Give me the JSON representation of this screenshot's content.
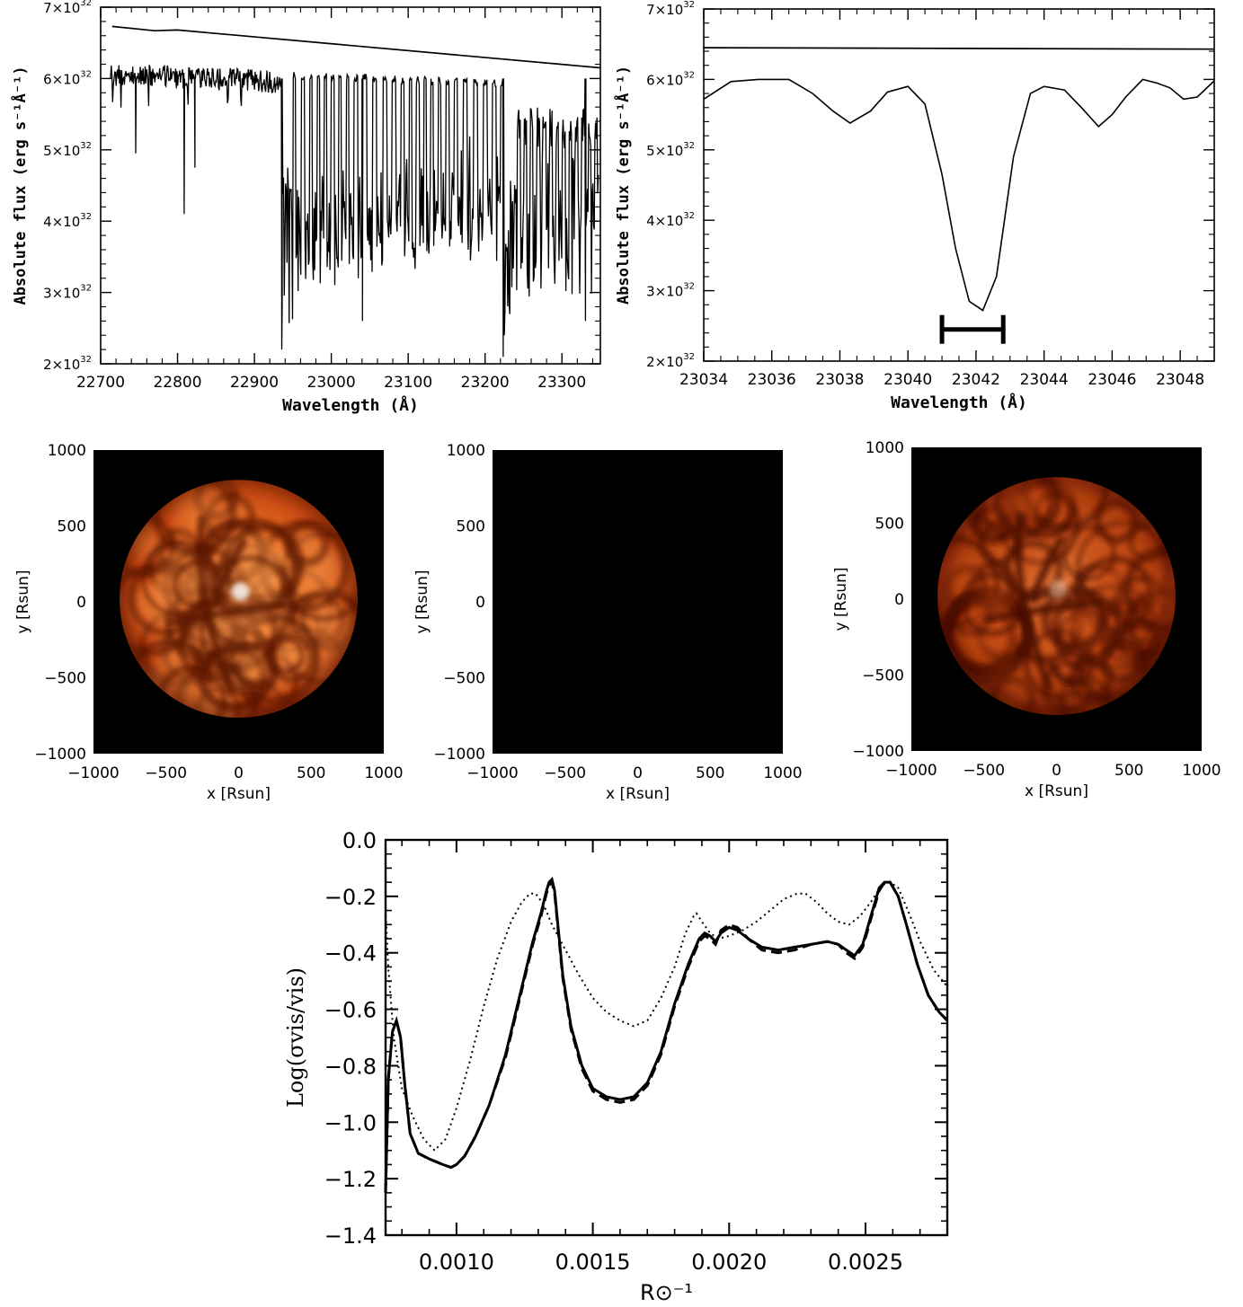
{
  "chart_data": [
    {
      "id": "spectrum-full",
      "type": "line",
      "xlabel": "Wavelength (Å)",
      "ylabel": "Absolute flux (erg s⁻¹Å⁻¹)",
      "xlim": [
        22700,
        23350
      ],
      "ylim": [
        2e+32,
        7e+32
      ],
      "x_ticks": [
        "22700",
        "22800",
        "22900",
        "23000",
        "23100",
        "23200",
        "23300"
      ],
      "y_ticks": [
        "2×10",
        "3×10",
        "4×10",
        "5×10",
        "6×10",
        "7×10"
      ],
      "y_tick_exponent": "32",
      "series": [
        {
          "style": "continuum",
          "x": [
            22715,
            22770,
            22800,
            23350
          ],
          "values": [
            6.73e+32,
            6.67e+32,
            6.68e+32,
            6.15e+32
          ]
        },
        {
          "style": "synthetic-spectrum",
          "x_range": [
            22700,
            23350
          ],
          "upper_envelope": [
            6.25e+32,
            6.2e+32,
            5.98e+32,
            5.95e+32
          ],
          "band_head_1": 22935,
          "band_head_2": 23225,
          "deep_lines": [
            {
              "x": 22745,
              "value": 4.95e+32
            },
            {
              "x": 22808,
              "value": 4.1e+32
            },
            {
              "x": 22822,
              "value": 4.75e+32
            },
            {
              "x": 22935,
              "value": 2.2e+32
            },
            {
              "x": 23040,
              "value": 2.6e+32
            },
            {
              "x": 23223,
              "value": 2.1e+32
            },
            {
              "x": 23330,
              "value": 2.6e+32
            }
          ]
        }
      ]
    },
    {
      "id": "spectrum-zoom",
      "type": "line",
      "xlabel": "Wavelength (Å)",
      "ylabel": "Absolute flux (erg s⁻¹Å⁻¹)",
      "xlim": [
        23034,
        23049
      ],
      "ylim": [
        2e+32,
        7e+32
      ],
      "x_ticks": [
        "23034",
        "23036",
        "23038",
        "23040",
        "23042",
        "23044",
        "23046",
        "23048"
      ],
      "y_ticks": [
        "2×10",
        "3×10",
        "4×10",
        "5×10",
        "6×10",
        "7×10"
      ],
      "y_tick_exponent": "32",
      "series": [
        {
          "style": "continuum",
          "x": [
            23034,
            23049
          ],
          "values": [
            6.45e+32,
            6.43e+32
          ]
        },
        {
          "style": "synthetic-spectrum",
          "x": [
            23034,
            23034.8,
            23035.6,
            23036.5,
            23037.2,
            23037.8,
            23038.3,
            23038.9,
            23039.4,
            23040.0,
            23040.5,
            23041.0,
            23041.4,
            23041.8,
            23042.2,
            23042.6,
            23043.1,
            23043.6,
            23044.0,
            23044.6,
            23045.1,
            23045.6,
            23046.0,
            23046.4,
            23046.9,
            23047.3,
            23047.7,
            23048.1,
            23048.5,
            23049.0
          ],
          "values": [
            5.72e+32,
            5.97e+32,
            6e+32,
            6e+32,
            5.8e+32,
            5.55e+32,
            5.38e+32,
            5.55e+32,
            5.82e+32,
            5.9e+32,
            5.65e+32,
            4.65e+32,
            3.6e+32,
            2.85e+32,
            2.72e+32,
            3.2e+32,
            4.9e+32,
            5.8e+32,
            5.9e+32,
            5.85e+32,
            5.6e+32,
            5.33e+32,
            5.5e+32,
            5.75e+32,
            6e+32,
            5.95e+32,
            5.88e+32,
            5.72e+32,
            5.75e+32,
            5.98e+32
          ]
        }
      ],
      "bandpass": {
        "x": [
          23041.0,
          23042.8
        ],
        "value": 2.45e+32
      }
    },
    {
      "id": "intensity-map-1",
      "type": "heatmap",
      "xlabel": "x [Rsun]",
      "ylabel": "y [Rsun]",
      "xlim": [
        -1000,
        1000
      ],
      "ylim": [
        -1000,
        1000
      ],
      "x_ticks": [
        "−1000",
        "−500",
        "0",
        "500",
        "1000"
      ],
      "y_ticks": [
        "−1000",
        "−500",
        "0",
        "500",
        "1000"
      ],
      "colormap": [
        "#000000",
        "#5a1300",
        "#b83a0a",
        "#e0601a",
        "#f79a4e",
        "#ffffff"
      ]
    },
    {
      "id": "intensity-map-2",
      "type": "heatmap",
      "xlabel": "x [Rsun]",
      "ylabel": "y [Rsun]",
      "xlim": [
        -1000,
        1000
      ],
      "ylim": [
        -1000,
        1000
      ],
      "x_ticks": [
        "−1000",
        "−500",
        "0",
        "500",
        "1000"
      ],
      "y_ticks": [
        "−1000",
        "−500",
        "0",
        "500",
        "1000"
      ],
      "colormap": [
        "#000000",
        "#5a1300",
        "#b83a0a",
        "#e0601a",
        "#f79a4e",
        "#ffffff"
      ]
    },
    {
      "id": "intensity-map-3",
      "type": "heatmap",
      "xlabel": "x [Rsun]",
      "ylabel": "y [Rsun]",
      "xlim": [
        -1000,
        1000
      ],
      "ylim": [
        -1000,
        1000
      ],
      "x_ticks": [
        "−1000",
        "−500",
        "0",
        "500",
        "1000"
      ],
      "y_ticks": [
        "−1000",
        "−500",
        "0",
        "500",
        "1000"
      ],
      "colormap": [
        "#000000",
        "#4a1000",
        "#9e3008",
        "#c84d14",
        "#ea8440",
        "#ffe0c0"
      ]
    },
    {
      "id": "visibility-error",
      "type": "line",
      "xlabel": "R⊙⁻¹",
      "ylabel": "Log(σvis/vis)",
      "xlim": [
        0.00074,
        0.0028
      ],
      "ylim": [
        -1.4,
        0.0
      ],
      "x_ticks": [
        "0.0010",
        "0.0015",
        "0.0020",
        "0.0025"
      ],
      "y_ticks": [
        "0.0",
        "−0.2",
        "−0.4",
        "−0.6",
        "−0.8",
        "−1.0",
        "−1.2",
        "−1.4"
      ],
      "series": [
        {
          "style": "solid",
          "x": [
            0.00074,
            0.000745,
            0.00075,
            0.000765,
            0.00078,
            0.000795,
            0.00081,
            0.00083,
            0.00086,
            0.0009,
            0.00095,
            0.00098,
            0.001,
            0.00103,
            0.00107,
            0.00112,
            0.00118,
            0.00124,
            0.00128,
            0.00131,
            0.00133,
            0.00134,
            0.00135,
            0.00136,
            0.00137,
            0.00139,
            0.00142,
            0.00146,
            0.0015,
            0.00155,
            0.0016,
            0.00165,
            0.0017,
            0.00175,
            0.0018,
            0.00185,
            0.00189,
            0.00191,
            0.00193,
            0.00195,
            0.00197,
            0.002,
            0.00203,
            0.00207,
            0.00212,
            0.00218,
            0.00224,
            0.0023,
            0.00236,
            0.0024,
            0.00243,
            0.00246,
            0.00249,
            0.00252,
            0.00255,
            0.00257,
            0.00259,
            0.00262,
            0.00265,
            0.00269,
            0.00273,
            0.00277,
            0.0028
          ],
          "values": [
            -1.25,
            -1.05,
            -0.85,
            -0.68,
            -0.64,
            -0.7,
            -0.86,
            -1.04,
            -1.11,
            -1.13,
            -1.15,
            -1.16,
            -1.15,
            -1.12,
            -1.05,
            -0.94,
            -0.76,
            -0.52,
            -0.36,
            -0.26,
            -0.18,
            -0.15,
            -0.14,
            -0.18,
            -0.28,
            -0.48,
            -0.66,
            -0.8,
            -0.88,
            -0.91,
            -0.92,
            -0.91,
            -0.86,
            -0.75,
            -0.58,
            -0.44,
            -0.35,
            -0.33,
            -0.34,
            -0.36,
            -0.33,
            -0.31,
            -0.32,
            -0.35,
            -0.38,
            -0.39,
            -0.38,
            -0.37,
            -0.36,
            -0.37,
            -0.39,
            -0.41,
            -0.37,
            -0.27,
            -0.17,
            -0.15,
            -0.15,
            -0.2,
            -0.3,
            -0.44,
            -0.55,
            -0.61,
            -0.64
          ]
        },
        {
          "style": "dashed",
          "x": [
            0.00074,
            0.000745,
            0.00075,
            0.000765,
            0.00078,
            0.000795,
            0.00081,
            0.00083,
            0.00086,
            0.0009,
            0.00095,
            0.00098,
            0.001,
            0.00103,
            0.00107,
            0.00112,
            0.00118,
            0.00124,
            0.00128,
            0.00131,
            0.00133,
            0.00134,
            0.00135,
            0.00136,
            0.00137,
            0.00139,
            0.00142,
            0.00146,
            0.0015,
            0.00155,
            0.0016,
            0.00165,
            0.0017,
            0.00175,
            0.0018,
            0.00185,
            0.00189,
            0.00191,
            0.00193,
            0.00195,
            0.00197,
            0.002,
            0.00203,
            0.00207,
            0.00212,
            0.00218,
            0.00224,
            0.0023,
            0.00236,
            0.0024,
            0.00243,
            0.00246,
            0.00249,
            0.00252,
            0.00255,
            0.00257,
            0.00259,
            0.00262,
            0.00265,
            0.00269,
            0.00273,
            0.00277,
            0.0028
          ],
          "values": [
            -1.25,
            -1.05,
            -0.85,
            -0.68,
            -0.64,
            -0.7,
            -0.86,
            -1.04,
            -1.11,
            -1.13,
            -1.15,
            -1.16,
            -1.15,
            -1.12,
            -1.05,
            -0.94,
            -0.77,
            -0.53,
            -0.37,
            -0.27,
            -0.19,
            -0.16,
            -0.15,
            -0.19,
            -0.29,
            -0.49,
            -0.67,
            -0.81,
            -0.89,
            -0.92,
            -0.93,
            -0.92,
            -0.87,
            -0.76,
            -0.59,
            -0.45,
            -0.36,
            -0.34,
            -0.35,
            -0.37,
            -0.32,
            -0.3,
            -0.31,
            -0.35,
            -0.39,
            -0.4,
            -0.39,
            -0.37,
            -0.36,
            -0.37,
            -0.4,
            -0.42,
            -0.38,
            -0.28,
            -0.18,
            -0.15,
            -0.15,
            -0.2,
            -0.3,
            -0.44,
            -0.55,
            -0.61,
            -0.64
          ]
        },
        {
          "style": "dotted",
          "x": [
            0.00074,
            0.00075,
            0.00077,
            0.0008,
            0.00084,
            0.00088,
            0.00092,
            0.00096,
            0.001,
            0.00105,
            0.0011,
            0.00115,
            0.0012,
            0.00124,
            0.00127,
            0.00129,
            0.00132,
            0.00135,
            0.0014,
            0.00145,
            0.0015,
            0.00155,
            0.0016,
            0.00165,
            0.0017,
            0.00175,
            0.0018,
            0.00184,
            0.00187,
            0.00188,
            0.0019,
            0.00193,
            0.00196,
            0.002,
            0.00205,
            0.0021,
            0.00215,
            0.0022,
            0.00225,
            0.00228,
            0.00232,
            0.00236,
            0.0024,
            0.00244,
            0.00248,
            0.00252,
            0.00256,
            0.00259,
            0.00262,
            0.00266,
            0.0027,
            0.00275,
            0.0028
          ],
          "values": [
            -0.25,
            -0.45,
            -0.7,
            -0.88,
            -0.98,
            -1.06,
            -1.1,
            -1.06,
            -0.95,
            -0.78,
            -0.59,
            -0.42,
            -0.29,
            -0.22,
            -0.19,
            -0.19,
            -0.23,
            -0.3,
            -0.39,
            -0.48,
            -0.56,
            -0.61,
            -0.64,
            -0.66,
            -0.64,
            -0.56,
            -0.45,
            -0.33,
            -0.27,
            -0.26,
            -0.29,
            -0.33,
            -0.35,
            -0.34,
            -0.32,
            -0.29,
            -0.25,
            -0.21,
            -0.19,
            -0.19,
            -0.22,
            -0.26,
            -0.29,
            -0.3,
            -0.27,
            -0.22,
            -0.16,
            -0.15,
            -0.17,
            -0.26,
            -0.36,
            -0.46,
            -0.52
          ]
        }
      ]
    }
  ]
}
